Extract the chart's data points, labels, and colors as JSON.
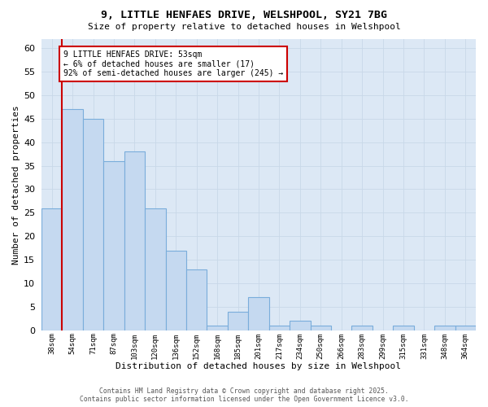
{
  "title_line1": "9, LITTLE HENFAES DRIVE, WELSHPOOL, SY21 7BG",
  "title_line2": "Size of property relative to detached houses in Welshpool",
  "xlabel": "Distribution of detached houses by size in Welshpool",
  "ylabel": "Number of detached properties",
  "bin_labels": [
    "38sqm",
    "54sqm",
    "71sqm",
    "87sqm",
    "103sqm",
    "120sqm",
    "136sqm",
    "152sqm",
    "168sqm",
    "185sqm",
    "201sqm",
    "217sqm",
    "234sqm",
    "250sqm",
    "266sqm",
    "283sqm",
    "299sqm",
    "315sqm",
    "331sqm",
    "348sqm",
    "364sqm"
  ],
  "bar_values": [
    26,
    47,
    45,
    36,
    38,
    26,
    17,
    13,
    1,
    4,
    7,
    1,
    2,
    1,
    0,
    1,
    0,
    1,
    0,
    1,
    1
  ],
  "bar_color": "#c5d9f0",
  "bar_edge_color": "#7aaddb",
  "annotation_text": "9 LITTLE HENFAES DRIVE: 53sqm\n← 6% of detached houses are smaller (17)\n92% of semi-detached houses are larger (245) →",
  "annotation_box_color": "#ffffff",
  "annotation_box_edge": "#cc0000",
  "redline_color": "#cc0000",
  "footer_line1": "Contains HM Land Registry data © Crown copyright and database right 2025.",
  "footer_line2": "Contains public sector information licensed under the Open Government Licence v3.0.",
  "ylim": [
    0,
    62
  ],
  "yticks": [
    0,
    5,
    10,
    15,
    20,
    25,
    30,
    35,
    40,
    45,
    50,
    55,
    60
  ],
  "grid_color": "#c8d8e8",
  "fig_bg_color": "#ffffff",
  "plot_bg_color": "#dce8f5"
}
